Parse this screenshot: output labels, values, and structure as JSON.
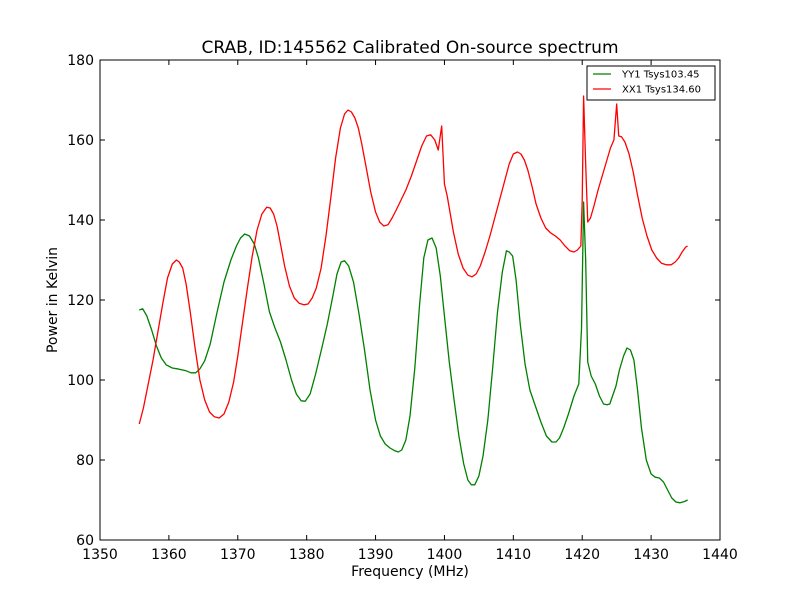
{
  "chart_data": {
    "type": "line",
    "title": "CRAB, ID:145562 Calibrated On-source spectrum",
    "xlabel": "Frequency (MHz)",
    "ylabel": "Power in Kelvin",
    "xlim": [
      1350,
      1440
    ],
    "ylim": [
      60,
      180
    ],
    "xticks": [
      1350,
      1360,
      1370,
      1380,
      1390,
      1400,
      1410,
      1420,
      1430,
      1440
    ],
    "yticks": [
      60,
      80,
      100,
      120,
      140,
      160,
      180
    ],
    "xtick_labels": [
      "1350",
      "1360",
      "1370",
      "1380",
      "1390",
      "1400",
      "1410",
      "1420",
      "1430",
      "1440"
    ],
    "ytick_labels": [
      "60",
      "80",
      "100",
      "120",
      "140",
      "160",
      "180"
    ],
    "grid": false,
    "legend_position": "top-right",
    "series": [
      {
        "name": "YY1 Tsys103.45",
        "color": "#008000",
        "x": [
          1355.7,
          1356.2,
          1356.8,
          1357.5,
          1358.2,
          1358.9,
          1359.6,
          1360.5,
          1361.5,
          1362.5,
          1363.2,
          1363.9,
          1364.5,
          1365.2,
          1366.0,
          1367.0,
          1368.0,
          1369.0,
          1369.8,
          1370.4,
          1371.0,
          1371.7,
          1372.4,
          1373.0,
          1373.8,
          1374.6,
          1375.4,
          1376.2,
          1377.0,
          1377.8,
          1378.5,
          1379.2,
          1379.8,
          1380.5,
          1381.3,
          1382.2,
          1383.0,
          1383.8,
          1384.4,
          1385.0,
          1385.5,
          1386.1,
          1386.8,
          1387.6,
          1388.4,
          1389.2,
          1390.0,
          1390.7,
          1391.4,
          1392.1,
          1392.8,
          1393.3,
          1393.8,
          1394.4,
          1395.0,
          1395.7,
          1396.4,
          1397.0,
          1397.6,
          1398.2,
          1398.8,
          1399.4,
          1400.0,
          1400.7,
          1401.4,
          1402.1,
          1402.8,
          1403.4,
          1403.9,
          1404.4,
          1405.0,
          1405.6,
          1406.3,
          1407.0,
          1407.7,
          1408.4,
          1409.0,
          1409.4,
          1409.9,
          1410.4,
          1411.0,
          1411.7,
          1412.4,
          1413.2,
          1414.0,
          1414.8,
          1415.6,
          1416.2,
          1416.7,
          1417.3,
          1418.0,
          1418.8,
          1419.5,
          1419.9,
          1420.2,
          1420.5,
          1420.8,
          1421.3,
          1421.9,
          1422.5,
          1423.1,
          1423.6,
          1424.0,
          1424.4,
          1424.9,
          1425.4,
          1426.0,
          1426.5,
          1427.0,
          1427.5,
          1428.0,
          1428.6,
          1429.3,
          1430.0,
          1430.6,
          1431.2,
          1431.8,
          1432.4,
          1433.0,
          1433.6,
          1434.2,
          1434.8,
          1435.3
        ],
        "values": [
          117.5,
          117.8,
          116.0,
          112.5,
          108.5,
          105.5,
          103.8,
          103.0,
          102.7,
          102.3,
          101.8,
          101.8,
          102.8,
          104.8,
          109.0,
          117.0,
          124.5,
          130.0,
          133.5,
          135.5,
          136.5,
          136.0,
          134.0,
          130.5,
          124.0,
          117.0,
          113.0,
          109.5,
          105.0,
          100.0,
          96.5,
          94.8,
          94.7,
          96.5,
          101.5,
          108.0,
          114.0,
          121.0,
          126.5,
          129.5,
          129.8,
          128.5,
          124.5,
          116.5,
          107.5,
          97.5,
          90.0,
          86.0,
          84.0,
          83.0,
          82.3,
          82.0,
          82.5,
          85.0,
          91.0,
          103.0,
          119.0,
          130.5,
          135.0,
          135.5,
          133.0,
          126.0,
          116.0,
          104.5,
          95.0,
          86.0,
          79.0,
          75.0,
          73.8,
          73.8,
          76.0,
          81.0,
          90.0,
          103.0,
          117.0,
          127.0,
          132.3,
          132.0,
          131.0,
          125.0,
          114.0,
          104.0,
          97.5,
          93.5,
          89.5,
          86.0,
          84.5,
          84.5,
          85.5,
          88.0,
          91.5,
          96.0,
          99.0,
          113.0,
          144.5,
          130.0,
          104.5,
          101.0,
          99.0,
          96.0,
          94.0,
          93.8,
          94.0,
          96.0,
          98.5,
          102.5,
          106.0,
          108.0,
          107.5,
          105.0,
          98.0,
          88.0,
          80.0,
          76.5,
          75.7,
          75.5,
          74.5,
          72.5,
          70.5,
          69.5,
          69.3,
          69.6,
          70.0
        ]
      },
      {
        "name": "XX1 Tsys134.60",
        "color": "#ff0000",
        "x": [
          1355.7,
          1356.3,
          1357.0,
          1357.7,
          1358.4,
          1359.1,
          1359.8,
          1360.5,
          1361.1,
          1361.5,
          1362.0,
          1362.5,
          1363.1,
          1363.8,
          1364.5,
          1365.2,
          1365.9,
          1366.6,
          1367.3,
          1368.0,
          1368.7,
          1369.4,
          1370.0,
          1370.7,
          1371.4,
          1372.1,
          1372.8,
          1373.5,
          1374.2,
          1374.7,
          1375.2,
          1375.7,
          1376.2,
          1376.8,
          1377.5,
          1378.2,
          1378.9,
          1379.6,
          1380.2,
          1380.8,
          1381.4,
          1382.1,
          1382.8,
          1383.5,
          1384.2,
          1384.9,
          1385.5,
          1386.0,
          1386.5,
          1387.0,
          1387.5,
          1388.0,
          1388.6,
          1389.3,
          1390.0,
          1390.6,
          1391.2,
          1391.8,
          1392.4,
          1393.0,
          1393.7,
          1394.4,
          1395.2,
          1396.0,
          1396.7,
          1397.4,
          1398.0,
          1398.6,
          1399.1,
          1399.6,
          1400.0,
          1400.4,
          1400.8,
          1401.3,
          1402.0,
          1402.7,
          1403.4,
          1404.0,
          1404.6,
          1405.2,
          1405.9,
          1406.6,
          1407.3,
          1408.0,
          1408.7,
          1409.4,
          1410.0,
          1410.6,
          1411.1,
          1411.6,
          1412.1,
          1412.7,
          1413.3,
          1414.0,
          1414.7,
          1415.4,
          1416.1,
          1416.8,
          1417.5,
          1418.2,
          1418.8,
          1419.3,
          1419.8,
          1420.0,
          1420.2,
          1420.5,
          1420.8,
          1421.2,
          1421.7,
          1422.3,
          1422.9,
          1423.5,
          1424.1,
          1424.6,
          1425.0,
          1425.3,
          1425.7,
          1426.2,
          1426.8,
          1427.4,
          1428.0,
          1428.7,
          1429.4,
          1430.1,
          1430.8,
          1431.5,
          1432.2,
          1432.9,
          1433.5,
          1434.0,
          1434.5,
          1435.0,
          1435.3
        ],
        "values": [
          89.0,
          93.0,
          99.0,
          105.0,
          112.0,
          119.0,
          125.5,
          129.0,
          130.0,
          129.5,
          128.0,
          124.0,
          117.0,
          108.0,
          100.0,
          95.0,
          92.0,
          90.8,
          90.5,
          91.5,
          94.5,
          99.5,
          106.0,
          114.5,
          123.0,
          131.0,
          137.5,
          141.5,
          143.2,
          143.0,
          141.5,
          138.5,
          134.0,
          128.5,
          123.5,
          120.5,
          119.2,
          118.8,
          119.0,
          120.5,
          123.0,
          128.0,
          136.0,
          145.5,
          155.5,
          163.0,
          166.5,
          167.5,
          167.0,
          165.5,
          163.0,
          159.0,
          153.5,
          147.0,
          142.0,
          139.5,
          138.5,
          138.8,
          140.5,
          142.5,
          145.0,
          147.5,
          151.0,
          155.0,
          158.5,
          161.0,
          161.3,
          160.0,
          157.5,
          163.5,
          149.0,
          146.0,
          142.0,
          137.0,
          131.5,
          128.0,
          126.2,
          125.8,
          126.5,
          128.5,
          132.0,
          136.0,
          140.5,
          145.0,
          149.5,
          154.0,
          156.5,
          157.0,
          156.5,
          155.0,
          152.5,
          148.5,
          144.0,
          140.5,
          138.0,
          136.8,
          136.0,
          135.0,
          133.5,
          132.3,
          132.0,
          132.5,
          133.5,
          145.0,
          171.0,
          154.0,
          139.5,
          140.5,
          143.5,
          147.5,
          151.0,
          154.5,
          158.0,
          160.0,
          169.0,
          161.0,
          160.8,
          159.5,
          156.5,
          152.0,
          146.5,
          140.5,
          136.0,
          132.5,
          130.5,
          129.2,
          128.8,
          128.8,
          129.5,
          130.5,
          132.0,
          133.2,
          133.5
        ]
      }
    ]
  }
}
